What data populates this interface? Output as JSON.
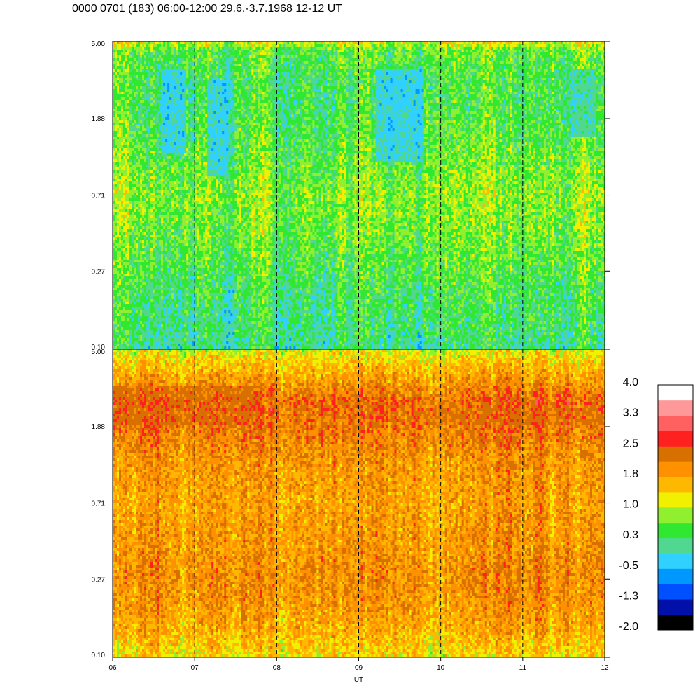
{
  "title": "0000 0701 (183) 06:00-12:00 29.6.-3.7.1968  12-12 UT",
  "chart_data": [
    {
      "type": "heatmap",
      "panel": "upper",
      "y_scale": "log",
      "ylim": [
        0.1,
        5.0
      ],
      "y_tick_labels": [
        "5.00",
        "1.88",
        "0.71",
        "0.27",
        "0.10"
      ],
      "y_ticks": [
        5.0,
        1.88,
        0.71,
        0.27,
        0.1
      ],
      "xlim": [
        6,
        12
      ],
      "x_ticks": [
        6,
        7,
        8,
        9,
        10,
        11,
        12
      ],
      "x_tick_labels": [
        "06",
        "07",
        "08",
        "09",
        "10",
        "11",
        "12"
      ],
      "xlabel": "UT",
      "dashed_vlines": [
        7,
        8,
        9,
        10,
        11
      ],
      "value_profile": {
        "y_levels": [
          0.1,
          0.14,
          0.2,
          0.27,
          0.4,
          0.71,
          1.2,
          1.88,
          3.0,
          4.5,
          5.0
        ],
        "typical_values": [
          0.1,
          0.25,
          0.3,
          0.45,
          0.6,
          0.75,
          0.55,
          0.4,
          0.35,
          0.55,
          1.2
        ]
      },
      "features": [
        {
          "x": [
            6.6,
            6.9
          ],
          "y": [
            1.2,
            3.5
          ],
          "value": -0.5
        },
        {
          "x": [
            7.15,
            7.4
          ],
          "y": [
            0.9,
            3.0
          ],
          "value": -0.5
        },
        {
          "x": [
            9.2,
            9.8
          ],
          "y": [
            1.1,
            3.5
          ],
          "value": -0.5
        },
        {
          "x": [
            11.6,
            11.9
          ],
          "y": [
            1.5,
            3.5
          ],
          "value": -0.3
        }
      ]
    },
    {
      "type": "heatmap",
      "panel": "lower",
      "y_scale": "log",
      "ylim": [
        0.1,
        5.0
      ],
      "y_tick_labels": [
        "5.00",
        "1.88",
        "0.71",
        "0.27",
        "0.10"
      ],
      "y_ticks": [
        5.0,
        1.88,
        0.71,
        0.27,
        0.1
      ],
      "xlim": [
        6,
        12
      ],
      "x_ticks": [
        6,
        7,
        8,
        9,
        10,
        11,
        12
      ],
      "x_tick_labels": [
        "06",
        "07",
        "08",
        "09",
        "10",
        "11",
        "12"
      ],
      "xlabel": "UT",
      "dashed_vlines": [
        7,
        8,
        9,
        10,
        11
      ],
      "value_profile": {
        "y_levels": [
          0.1,
          0.14,
          0.2,
          0.27,
          0.4,
          0.71,
          1.2,
          1.88,
          2.6,
          3.5,
          5.0
        ],
        "typical_values": [
          1.3,
          1.7,
          1.9,
          2.0,
          1.9,
          1.8,
          1.9,
          2.2,
          2.3,
          1.8,
          1.1
        ]
      },
      "features": [
        {
          "x": [
            6.0,
            7.8
          ],
          "y": [
            1.9,
            3.2
          ],
          "value": 2.4
        },
        {
          "x": [
            9.8,
            12.0
          ],
          "y": [
            1.9,
            2.4
          ],
          "value": 2.3
        }
      ]
    }
  ],
  "colorbar": {
    "labels": [
      "4.0",
      "3.3",
      "2.5",
      "1.8",
      "1.0",
      "0.3",
      "-0.5",
      "-1.3",
      "-2.0"
    ],
    "min": -2.0,
    "max": 4.0,
    "colors": [
      "#000000",
      "#0010a8",
      "#0050ff",
      "#0098ff",
      "#30d0ff",
      "#50d890",
      "#30e830",
      "#90f030",
      "#f0f000",
      "#ffb800",
      "#ff9000",
      "#d87000",
      "#ff2020",
      "#ff6060",
      "#ff9898",
      "#ffffff"
    ]
  }
}
